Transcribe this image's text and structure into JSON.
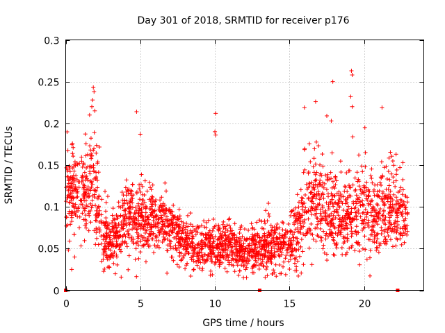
{
  "chart_data": {
    "type": "scatter",
    "title": "Day 301 of 2018, SRMTID for receiver p176",
    "xlabel": "GPS time / hours",
    "ylabel": "SRMTID / TECUs",
    "xlim": [
      0,
      24
    ],
    "ylim": [
      0,
      0.3
    ],
    "x_ticks": [
      0,
      5,
      10,
      15,
      20
    ],
    "x_tick_labels": [
      "0",
      "5",
      "10",
      "15",
      "20"
    ],
    "y_ticks": [
      0,
      0.05,
      0.1,
      0.15,
      0.2,
      0.25,
      0.3
    ],
    "y_tick_labels": [
      "0",
      "0.05",
      "0.1",
      "0.15",
      "0.2",
      "0.25",
      "0.3"
    ],
    "grid": true,
    "marker": "plus",
    "series_color": "#ff0000",
    "zero_markers_x": [
      0.0,
      13.0,
      22.25
    ],
    "profile": {
      "hours": [
        0,
        0.5,
        1,
        1.5,
        2,
        2.5,
        3,
        3.5,
        4,
        5,
        6,
        7,
        8,
        9,
        10,
        11,
        12,
        13,
        14,
        15,
        15.5,
        16,
        17,
        18,
        19,
        20,
        21,
        22,
        22.5,
        23
      ],
      "median": [
        0.105,
        0.12,
        0.115,
        0.13,
        0.12,
        0.065,
        0.06,
        0.07,
        0.085,
        0.085,
        0.085,
        0.075,
        0.055,
        0.05,
        0.055,
        0.055,
        0.045,
        0.05,
        0.055,
        0.06,
        0.07,
        0.1,
        0.11,
        0.09,
        0.085,
        0.1,
        0.09,
        0.1,
        0.085,
        0.09
      ],
      "spread": [
        0.03,
        0.03,
        0.03,
        0.035,
        0.045,
        0.025,
        0.02,
        0.025,
        0.03,
        0.03,
        0.025,
        0.022,
        0.018,
        0.017,
        0.018,
        0.017,
        0.016,
        0.018,
        0.018,
        0.02,
        0.025,
        0.035,
        0.035,
        0.03,
        0.03,
        0.035,
        0.03,
        0.035,
        0.025,
        0.025
      ]
    },
    "outliers": [
      {
        "x": 1.85,
        "y": 0.243
      },
      {
        "x": 1.9,
        "y": 0.238
      },
      {
        "x": 1.8,
        "y": 0.228
      },
      {
        "x": 1.75,
        "y": 0.22
      },
      {
        "x": 1.95,
        "y": 0.215
      },
      {
        "x": 1.6,
        "y": 0.21
      },
      {
        "x": 4.75,
        "y": 0.214
      },
      {
        "x": 5.0,
        "y": 0.187
      },
      {
        "x": 10.05,
        "y": 0.212
      },
      {
        "x": 10.0,
        "y": 0.19
      },
      {
        "x": 10.05,
        "y": 0.186
      },
      {
        "x": 16.0,
        "y": 0.219
      },
      {
        "x": 16.75,
        "y": 0.226
      },
      {
        "x": 17.5,
        "y": 0.209
      },
      {
        "x": 17.9,
        "y": 0.25
      },
      {
        "x": 17.8,
        "y": 0.203
      },
      {
        "x": 19.15,
        "y": 0.263
      },
      {
        "x": 19.2,
        "y": 0.258
      },
      {
        "x": 19.1,
        "y": 0.232
      },
      {
        "x": 19.2,
        "y": 0.22
      },
      {
        "x": 21.2,
        "y": 0.219
      },
      {
        "x": 20.05,
        "y": 0.195
      },
      {
        "x": 0.45,
        "y": 0.176
      },
      {
        "x": 0.5,
        "y": 0.171
      },
      {
        "x": 22.6,
        "y": 0.153
      },
      {
        "x": 0.4,
        "y": 0.025
      },
      {
        "x": 0.6,
        "y": 0.04
      }
    ]
  }
}
